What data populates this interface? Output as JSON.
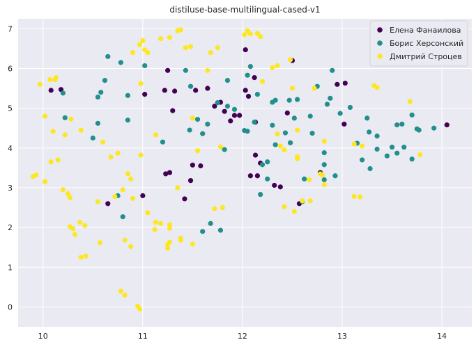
{
  "chart_data": {
    "type": "scatter",
    "title": "distiluse-base-multilingual-cased-v1",
    "xlabel": "",
    "ylabel": "",
    "xlim": [
      9.75,
      14.3
    ],
    "ylim": [
      -0.5,
      7.25
    ],
    "xticks": [
      "10",
      "11",
      "12",
      "13",
      "14"
    ],
    "yticks": [
      "0",
      "1",
      "2",
      "3",
      "4",
      "5",
      "6",
      "7"
    ],
    "grid": true,
    "legend_position": "top-right",
    "series": [
      {
        "name": "Елена Фанаилова",
        "color": "#440154",
        "points": [
          [
            10.08,
            5.45
          ],
          [
            10.18,
            5.47
          ],
          [
            10.65,
            2.6
          ],
          [
            11.0,
            2.8
          ],
          [
            11.02,
            5.35
          ],
          [
            11.22,
            5.45
          ],
          [
            11.25,
            5.95
          ],
          [
            11.23,
            3.35
          ],
          [
            11.27,
            3.38
          ],
          [
            11.32,
            5.43
          ],
          [
            11.3,
            4.94
          ],
          [
            11.42,
            2.72
          ],
          [
            11.48,
            3.18
          ],
          [
            11.5,
            3.57
          ],
          [
            11.53,
            5.45
          ],
          [
            11.58,
            3.55
          ],
          [
            11.65,
            5.5
          ],
          [
            11.72,
            5.05
          ],
          [
            11.78,
            5.15
          ],
          [
            11.82,
            4.92
          ],
          [
            11.88,
            4.68
          ],
          [
            11.92,
            4.82
          ],
          [
            11.97,
            4.82
          ],
          [
            12.03,
            5.45
          ],
          [
            12.03,
            6.47
          ],
          [
            12.06,
            5.3
          ],
          [
            12.08,
            3.3
          ],
          [
            12.12,
            5.77
          ],
          [
            12.13,
            3.82
          ],
          [
            12.13,
            4.65
          ],
          [
            12.15,
            3.3
          ],
          [
            12.18,
            3.62
          ],
          [
            12.32,
            3.06
          ],
          [
            12.38,
            3.02
          ],
          [
            12.45,
            4.88
          ],
          [
            12.5,
            6.2
          ],
          [
            12.57,
            2.6
          ],
          [
            12.78,
            3.38
          ],
          [
            12.95,
            5.6
          ],
          [
            13.02,
            4.6
          ],
          [
            13.03,
            5.63
          ],
          [
            14.05,
            4.58
          ]
        ]
      },
      {
        "name": "Борис Херсонский",
        "color": "#21908d",
        "points": [
          [
            10.2,
            5.38
          ],
          [
            10.22,
            4.76
          ],
          [
            10.5,
            4.25
          ],
          [
            10.55,
            4.62
          ],
          [
            10.55,
            5.28
          ],
          [
            10.58,
            5.4
          ],
          [
            10.62,
            5.7
          ],
          [
            10.65,
            6.3
          ],
          [
            10.75,
            2.8
          ],
          [
            10.78,
            6.15
          ],
          [
            10.8,
            2.27
          ],
          [
            10.85,
            4.7
          ],
          [
            10.85,
            5.32
          ],
          [
            11.02,
            6.07
          ],
          [
            11.2,
            4.15
          ],
          [
            11.43,
            5.95
          ],
          [
            11.47,
            4.45
          ],
          [
            11.48,
            5.55
          ],
          [
            11.55,
            4.72
          ],
          [
            11.6,
            1.9
          ],
          [
            11.6,
            4.36
          ],
          [
            11.65,
            4.6
          ],
          [
            11.68,
            2.1
          ],
          [
            11.75,
            5.14
          ],
          [
            11.78,
            1.93
          ],
          [
            11.82,
            3.96
          ],
          [
            11.85,
            5.7
          ],
          [
            11.85,
            5.05
          ],
          [
            11.92,
            4.97
          ],
          [
            12.02,
            4.44
          ],
          [
            12.05,
            4.42
          ],
          [
            12.05,
            5.83
          ],
          [
            12.08,
            6.05
          ],
          [
            12.12,
            4.65
          ],
          [
            12.15,
            5.35
          ],
          [
            12.18,
            2.83
          ],
          [
            12.2,
            3.58
          ],
          [
            12.25,
            3.65
          ],
          [
            12.25,
            3.22
          ],
          [
            12.3,
            5.15
          ],
          [
            12.3,
            4.57
          ],
          [
            12.33,
            4.08
          ],
          [
            12.33,
            5.2
          ],
          [
            12.43,
            4.38
          ],
          [
            12.47,
            5.2
          ],
          [
            12.48,
            4.13
          ],
          [
            12.52,
            4.75
          ],
          [
            12.55,
            5.22
          ],
          [
            12.6,
            2.65
          ],
          [
            12.62,
            3.22
          ],
          [
            12.68,
            4.8
          ],
          [
            12.7,
            4.37
          ],
          [
            12.75,
            5.55
          ],
          [
            12.82,
            3.88
          ],
          [
            12.82,
            3.58
          ],
          [
            12.82,
            3.2
          ],
          [
            12.85,
            5.1
          ],
          [
            12.88,
            5.25
          ],
          [
            12.9,
            5.95
          ],
          [
            12.93,
            3.3
          ],
          [
            12.98,
            4.87
          ],
          [
            13.08,
            5.02
          ],
          [
            13.15,
            4.12
          ],
          [
            13.2,
            3.7
          ],
          [
            13.25,
            4.75
          ],
          [
            13.27,
            4.4
          ],
          [
            13.28,
            3.48
          ],
          [
            13.35,
            3.97
          ],
          [
            13.35,
            4.3
          ],
          [
            13.45,
            3.8
          ],
          [
            13.5,
            4.02
          ],
          [
            13.55,
            3.87
          ],
          [
            13.55,
            4.58
          ],
          [
            13.62,
            4.02
          ],
          [
            13.6,
            4.6
          ],
          [
            13.7,
            4.83
          ],
          [
            13.7,
            3.72
          ],
          [
            13.75,
            4.48
          ],
          [
            13.77,
            4.45
          ],
          [
            13.92,
            4.5
          ]
        ]
      },
      {
        "name": "Дмитрий Строцев",
        "color": "#fde725",
        "points": [
          [
            9.9,
            3.28
          ],
          [
            9.93,
            3.32
          ],
          [
            9.97,
            5.6
          ],
          [
            10.02,
            3.15
          ],
          [
            10.02,
            4.8
          ],
          [
            10.07,
            5.72
          ],
          [
            10.08,
            3.65
          ],
          [
            10.12,
            5.72
          ],
          [
            10.13,
            5.77
          ],
          [
            10.1,
            4.42
          ],
          [
            10.15,
            3.7
          ],
          [
            10.2,
            2.95
          ],
          [
            10.22,
            4.33
          ],
          [
            10.25,
            2.85
          ],
          [
            10.27,
            2.75
          ],
          [
            10.27,
            2.02
          ],
          [
            10.3,
            1.97
          ],
          [
            10.28,
            4.73
          ],
          [
            10.32,
            1.82
          ],
          [
            10.37,
            2.13
          ],
          [
            10.38,
            1.25
          ],
          [
            10.38,
            4.45
          ],
          [
            10.42,
            2.05
          ],
          [
            10.43,
            1.28
          ],
          [
            10.55,
            2.65
          ],
          [
            10.57,
            1.62
          ],
          [
            10.6,
            4.15
          ],
          [
            10.68,
            3.77
          ],
          [
            10.72,
            2.78
          ],
          [
            10.75,
            3.87
          ],
          [
            10.78,
            0.4
          ],
          [
            10.8,
            2.95
          ],
          [
            10.82,
            0.3
          ],
          [
            10.82,
            1.68
          ],
          [
            10.85,
            3.35
          ],
          [
            10.88,
            1.52
          ],
          [
            10.88,
            3.22
          ],
          [
            10.9,
            2.73
          ],
          [
            10.9,
            6.4
          ],
          [
            10.95,
            0.02
          ],
          [
            10.97,
            6.6
          ],
          [
            10.97,
            -0.05
          ],
          [
            10.98,
            5.62
          ],
          [
            10.98,
            3.82
          ],
          [
            11.0,
            6.7
          ],
          [
            11.02,
            6.47
          ],
          [
            11.05,
            2.37
          ],
          [
            11.05,
            6.4
          ],
          [
            11.12,
            1.95
          ],
          [
            11.13,
            4.33
          ],
          [
            11.13,
            2.13
          ],
          [
            11.18,
            2.1
          ],
          [
            11.18,
            6.75
          ],
          [
            11.25,
            1.48
          ],
          [
            11.25,
            1.57
          ],
          [
            11.27,
            1.63
          ],
          [
            11.27,
            1.98
          ],
          [
            11.27,
            2.07
          ],
          [
            11.27,
            6.78
          ],
          [
            11.35,
            3.0
          ],
          [
            11.35,
            6.95
          ],
          [
            11.38,
            6.97
          ],
          [
            11.38,
            1.68
          ],
          [
            11.38,
            1.73
          ],
          [
            11.43,
            6.52
          ],
          [
            11.48,
            6.55
          ],
          [
            11.5,
            1.58
          ],
          [
            11.5,
            4.75
          ],
          [
            11.55,
            3.93
          ],
          [
            11.65,
            5.95
          ],
          [
            11.68,
            6.4
          ],
          [
            11.72,
            2.47
          ],
          [
            11.75,
            6.52
          ],
          [
            11.78,
            4.03
          ],
          [
            11.8,
            2.5
          ],
          [
            12.02,
            6.85
          ],
          [
            12.05,
            6.95
          ],
          [
            12.08,
            6.87
          ],
          [
            12.15,
            6.88
          ],
          [
            12.18,
            6.8
          ],
          [
            12.2,
            5.67
          ],
          [
            12.3,
            6.02
          ],
          [
            12.35,
            6.07
          ],
          [
            12.38,
            4.05
          ],
          [
            12.35,
            4.35
          ],
          [
            12.42,
            2.52
          ],
          [
            12.42,
            3.95
          ],
          [
            12.48,
            6.22
          ],
          [
            12.5,
            5.5
          ],
          [
            12.52,
            2.4
          ],
          [
            12.55,
            4.45
          ],
          [
            12.55,
            3.78
          ],
          [
            12.55,
            3.73
          ],
          [
            12.6,
            2.67
          ],
          [
            12.67,
            3.2
          ],
          [
            12.68,
            2.67
          ],
          [
            12.72,
            5.5
          ],
          [
            12.78,
            3.35
          ],
          [
            12.8,
            3.32
          ],
          [
            12.82,
            3.08
          ],
          [
            12.82,
            4.17
          ],
          [
            13.12,
            4.1
          ],
          [
            13.12,
            2.78
          ],
          [
            13.18,
            2.77
          ],
          [
            13.2,
            4.05
          ],
          [
            13.32,
            5.57
          ],
          [
            13.35,
            5.52
          ],
          [
            13.68,
            5.17
          ],
          [
            13.78,
            3.83
          ]
        ]
      }
    ]
  }
}
